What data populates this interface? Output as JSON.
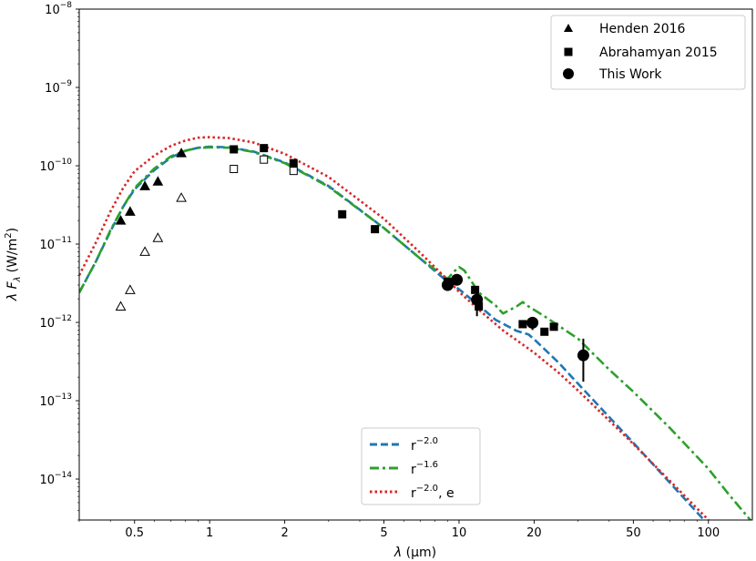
{
  "chart_data": {
    "type": "scatter",
    "xscale": "log",
    "yscale": "log",
    "xlim": [
      0.3,
      150
    ],
    "ylim": [
      3e-15,
      1e-08
    ],
    "xlabel_symbol": "λ",
    "xlabel_unit": "(μm)",
    "ylabel_symbol": "λ F",
    "ylabel_sub": "λ",
    "ylabel_unit": "(W/m",
    "ylabel_unit_sup": "2",
    "ylabel_close": ")",
    "x_ticks": [
      {
        "value": 0.5,
        "label": "0.5"
      },
      {
        "value": 1,
        "label": "1"
      },
      {
        "value": 2,
        "label": "2"
      },
      {
        "value": 5,
        "label": "5"
      },
      {
        "value": 10,
        "label": "10"
      },
      {
        "value": 20,
        "label": "20"
      },
      {
        "value": 50,
        "label": "50"
      },
      {
        "value": 100,
        "label": "100"
      }
    ],
    "y_ticks": [
      {
        "value": 1e-14,
        "base": "10",
        "exp": "−14"
      },
      {
        "value": 1e-13,
        "base": "10",
        "exp": "−13"
      },
      {
        "value": 1e-12,
        "base": "10",
        "exp": "−12"
      },
      {
        "value": 1e-11,
        "base": "10",
        "exp": "−11"
      },
      {
        "value": 1e-10,
        "base": "10",
        "exp": "−10"
      },
      {
        "value": 1e-09,
        "base": "10",
        "exp": "−9"
      },
      {
        "value": 1e-08,
        "base": "10",
        "exp": "−8"
      }
    ],
    "points": {
      "henden_filled": [
        [
          0.44,
          2e-11
        ],
        [
          0.48,
          2.6e-11
        ],
        [
          0.55,
          5.5e-11
        ],
        [
          0.62,
          6.3e-11
        ],
        [
          0.77,
          1.45e-10
        ]
      ],
      "henden_open": [
        [
          0.44,
          1.6e-12
        ],
        [
          0.48,
          2.6e-12
        ],
        [
          0.55,
          8e-12
        ],
        [
          0.62,
          1.2e-11
        ],
        [
          0.77,
          3.9e-11
        ]
      ],
      "abrahamyan_filled": [
        [
          1.25,
          1.62e-10
        ],
        [
          1.65,
          1.68e-10
        ],
        [
          2.17,
          1.08e-10
        ],
        [
          3.4,
          2.4e-11
        ],
        [
          4.6,
          1.55e-11
        ],
        [
          9.0,
          3.3e-12
        ],
        [
          11.6,
          2.6e-12
        ],
        [
          12.0,
          1.6e-12
        ],
        [
          18.0,
          9.5e-13
        ],
        [
          22.0,
          7.6e-13
        ],
        [
          24.0,
          8.8e-13
        ]
      ],
      "abrahamyan_open": [
        [
          1.25,
          9.1e-11
        ],
        [
          1.65,
          1.2e-10
        ],
        [
          2.17,
          8.6e-11
        ]
      ],
      "this_work": [
        {
          "x": 9.0,
          "y": 3e-12,
          "ylo": 3e-12,
          "yhi": 3e-12
        },
        {
          "x": 9.8,
          "y": 3.5e-12,
          "ylo": 3.5e-12,
          "yhi": 3.5e-12
        },
        {
          "x": 11.8,
          "y": 1.95e-12,
          "ylo": 1.2e-12,
          "yhi": 2.4e-12
        },
        {
          "x": 19.7,
          "y": 9.9e-13,
          "ylo": 8e-13,
          "yhi": 1.15e-12
        },
        {
          "x": 31.5,
          "y": 3.8e-13,
          "ylo": 1.75e-13,
          "yhi": 6.2e-13
        }
      ]
    },
    "series": [
      {
        "name": "r−2.0",
        "color": "#1f77b4",
        "style": "dashed",
        "values": [
          [
            0.3,
            2.4e-12
          ],
          [
            0.35,
            6e-12
          ],
          [
            0.4,
            1.45e-11
          ],
          [
            0.45,
            3e-11
          ],
          [
            0.5,
            5e-11
          ],
          [
            0.6,
            8.8e-11
          ],
          [
            0.7,
            1.28e-10
          ],
          [
            0.8,
            1.55e-10
          ],
          [
            0.9,
            1.7e-10
          ],
          [
            1.0,
            1.75e-10
          ],
          [
            1.2,
            1.72e-10
          ],
          [
            1.5,
            1.52e-10
          ],
          [
            2.0,
            1.1e-10
          ],
          [
            3.0,
            5.5e-11
          ],
          [
            5.0,
            1.6e-11
          ],
          [
            7.0,
            6.5e-12
          ],
          [
            9.0,
            3.3e-12
          ],
          [
            10.0,
            2.65e-12
          ],
          [
            12.0,
            1.65e-12
          ],
          [
            14.0,
            1.08e-12
          ],
          [
            17.0,
            7.8e-13
          ],
          [
            19.0,
            7e-13
          ],
          [
            20.0,
            6.1e-13
          ],
          [
            25.0,
            3.1e-13
          ],
          [
            30.0,
            1.65e-13
          ],
          [
            40.0,
            6.2e-14
          ],
          [
            50.0,
            2.9e-14
          ],
          [
            70.0,
            9e-15
          ],
          [
            100.0,
            2.6e-15
          ]
        ]
      },
      {
        "name": "r−1.6",
        "color": "#2ca02c",
        "style": "dashdot",
        "values": [
          [
            0.3,
            2.4e-12
          ],
          [
            0.35,
            6e-12
          ],
          [
            0.4,
            1.5e-11
          ],
          [
            0.45,
            3e-11
          ],
          [
            0.5,
            5.2e-11
          ],
          [
            0.6,
            9.2e-11
          ],
          [
            0.7,
            1.32e-10
          ],
          [
            0.8,
            1.56e-10
          ],
          [
            0.9,
            1.69e-10
          ],
          [
            1.0,
            1.72e-10
          ],
          [
            1.2,
            1.7e-10
          ],
          [
            1.5,
            1.5e-10
          ],
          [
            2.0,
            1.08e-10
          ],
          [
            3.0,
            5.4e-11
          ],
          [
            5.0,
            1.6e-11
          ],
          [
            7.0,
            6.5e-12
          ],
          [
            9.0,
            3.6e-12
          ],
          [
            9.5,
            4.4e-12
          ],
          [
            10.0,
            5.1e-12
          ],
          [
            10.5,
            4.6e-12
          ],
          [
            12.0,
            2.4e-12
          ],
          [
            14.0,
            1.65e-12
          ],
          [
            15.0,
            1.3e-12
          ],
          [
            17.0,
            1.6e-12
          ],
          [
            18.0,
            1.82e-12
          ],
          [
            19.0,
            1.6e-12
          ],
          [
            22.0,
            1.2e-12
          ],
          [
            30.0,
            6.2e-13
          ],
          [
            40.0,
            2.5e-13
          ],
          [
            50.0,
            1.3e-13
          ],
          [
            70.0,
            4.5e-14
          ],
          [
            100.0,
            1.35e-14
          ],
          [
            120.0,
            6.5e-15
          ],
          [
            150.0,
            2.8e-15
          ]
        ]
      },
      {
        "name": "r−2.0, e",
        "color": "#d62728",
        "style": "dotted",
        "values": [
          [
            0.3,
            4e-12
          ],
          [
            0.35,
            1.05e-11
          ],
          [
            0.4,
            2.6e-11
          ],
          [
            0.45,
            5.2e-11
          ],
          [
            0.5,
            8.5e-11
          ],
          [
            0.6,
            1.35e-10
          ],
          [
            0.7,
            1.8e-10
          ],
          [
            0.8,
            2.1e-10
          ],
          [
            0.9,
            2.28e-10
          ],
          [
            1.0,
            2.32e-10
          ],
          [
            1.2,
            2.25e-10
          ],
          [
            1.5,
            1.98e-10
          ],
          [
            2.0,
            1.42e-10
          ],
          [
            3.0,
            7.2e-11
          ],
          [
            5.0,
            2.1e-11
          ],
          [
            7.0,
            7.7e-12
          ],
          [
            9.0,
            3.5e-12
          ],
          [
            10.0,
            2.45e-12
          ],
          [
            12.0,
            1.45e-12
          ],
          [
            15.0,
            7.9e-13
          ],
          [
            20.0,
            4.1e-13
          ],
          [
            25.0,
            2.3e-13
          ],
          [
            30.0,
            1.35e-13
          ],
          [
            40.0,
            5.6e-14
          ],
          [
            50.0,
            2.8e-14
          ],
          [
            70.0,
            9.5e-15
          ],
          [
            100.0,
            3e-15
          ]
        ]
      }
    ],
    "legend_upper": [
      {
        "marker": "triangle",
        "label": "Henden 2016"
      },
      {
        "marker": "square",
        "label": "Abrahamyan 2015"
      },
      {
        "marker": "circle",
        "label": "This Work"
      }
    ],
    "legend_lower": [
      {
        "color": "#1f77b4",
        "style": "dashed",
        "label": "r",
        "label_sup": "−2.0",
        "label_tail": ""
      },
      {
        "color": "#2ca02c",
        "style": "dashdot",
        "label": "r",
        "label_sup": "−1.6",
        "label_tail": ""
      },
      {
        "color": "#d62728",
        "style": "dotted",
        "label": "r",
        "label_sup": "−2.0",
        "label_tail": ", e"
      }
    ],
    "legend_upper_position": "top-right",
    "legend_lower_position": "bottom-center"
  }
}
